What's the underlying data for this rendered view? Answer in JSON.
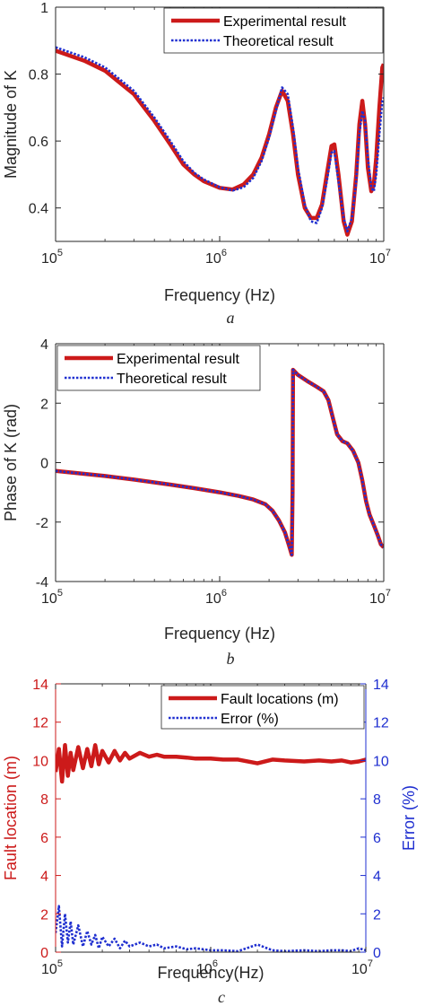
{
  "colors": {
    "experimental": "#cc1a1a",
    "theoretical": "#1f2fd0",
    "axis": "#262626"
  },
  "chart_data": [
    {
      "id": "a",
      "type": "line",
      "caption": "a",
      "xlabel": "Frequency (Hz)",
      "ylabel": "Magnitude of K",
      "xscale": "log",
      "xlim": [
        100000,
        10000000
      ],
      "ylim": [
        0.3,
        1.0
      ],
      "x_ticks": [
        {
          "base": "10",
          "exp": "5"
        },
        {
          "base": "10",
          "exp": "6"
        },
        {
          "base": "10",
          "exp": "7"
        }
      ],
      "y_ticks": [
        "0.4",
        "0.6",
        "0.8",
        "1"
      ],
      "y_tick_values": [
        0.4,
        0.6,
        0.8,
        1.0
      ],
      "legend": "top-right",
      "series": [
        {
          "name": "Experimental result",
          "style": "solid",
          "x": [
            100000,
            150000,
            200000,
            300000,
            400000,
            500000,
            600000,
            700000,
            800000,
            1000000,
            1200000,
            1400000,
            1600000,
            1800000,
            2000000,
            2200000,
            2400000,
            2600000,
            2800000,
            3000000,
            3300000,
            3600000,
            3900000,
            4200000,
            4500000,
            4800000,
            5000000,
            5300000,
            5700000,
            6000000,
            6400000,
            6800000,
            7100000,
            7400000,
            7700000,
            8000000,
            8400000,
            8700000,
            9000000,
            9400000,
            9800000,
            10000000
          ],
          "y": [
            0.87,
            0.84,
            0.81,
            0.74,
            0.66,
            0.59,
            0.53,
            0.5,
            0.48,
            0.46,
            0.455,
            0.47,
            0.5,
            0.55,
            0.62,
            0.7,
            0.75,
            0.72,
            0.62,
            0.5,
            0.4,
            0.37,
            0.37,
            0.41,
            0.5,
            0.585,
            0.59,
            0.5,
            0.36,
            0.32,
            0.36,
            0.5,
            0.65,
            0.72,
            0.65,
            0.52,
            0.45,
            0.47,
            0.55,
            0.7,
            0.82,
            0.83
          ]
        },
        {
          "name": "Theoretical result",
          "style": "dotted",
          "x": [
            100000,
            150000,
            200000,
            300000,
            400000,
            500000,
            600000,
            700000,
            800000,
            1000000,
            1200000,
            1400000,
            1600000,
            1800000,
            2000000,
            2200000,
            2400000,
            2600000,
            2800000,
            3000000,
            3300000,
            3600000,
            3900000,
            4200000,
            4500000,
            4800000,
            5000000,
            5300000,
            5700000,
            6000000,
            6400000,
            6800000,
            7100000,
            7400000,
            7700000,
            8000000,
            8400000,
            8700000,
            9000000,
            9400000,
            9800000,
            10000000
          ],
          "y": [
            0.88,
            0.85,
            0.82,
            0.75,
            0.67,
            0.6,
            0.54,
            0.505,
            0.485,
            0.462,
            0.452,
            0.462,
            0.49,
            0.54,
            0.61,
            0.69,
            0.76,
            0.74,
            0.64,
            0.52,
            0.41,
            0.36,
            0.355,
            0.4,
            0.48,
            0.565,
            0.57,
            0.48,
            0.37,
            0.33,
            0.37,
            0.48,
            0.62,
            0.69,
            0.66,
            0.55,
            0.46,
            0.45,
            0.5,
            0.62,
            0.72,
            0.73
          ]
        }
      ]
    },
    {
      "id": "b",
      "type": "line",
      "caption": "b",
      "xlabel": "Frequency (Hz)",
      "ylabel": "Phase of K (rad)",
      "xscale": "log",
      "xlim": [
        100000,
        10000000
      ],
      "ylim": [
        -4,
        4
      ],
      "x_ticks": [
        {
          "base": "10",
          "exp": "5"
        },
        {
          "base": "10",
          "exp": "6"
        },
        {
          "base": "10",
          "exp": "7"
        }
      ],
      "y_ticks": [
        "-4",
        "-2",
        "0",
        "2",
        "4"
      ],
      "y_tick_values": [
        -4,
        -2,
        0,
        2,
        4
      ],
      "legend": "top-left",
      "series": [
        {
          "name": "Experimental result",
          "style": "solid",
          "x": [
            100000,
            200000,
            300000,
            500000,
            700000,
            1000000,
            1300000,
            1600000,
            1900000,
            2100000,
            2300000,
            2500000,
            2650000,
            2750000,
            2780000,
            2800000,
            3000000,
            3400000,
            3900000,
            4300000,
            4600000,
            4900000,
            5200000,
            5600000,
            6000000,
            6500000,
            7000000,
            7400000,
            7800000,
            8200000,
            8700000,
            9200000,
            9600000,
            10000000
          ],
          "y": [
            -0.28,
            -0.45,
            -0.57,
            -0.74,
            -0.86,
            -1.0,
            -1.12,
            -1.24,
            -1.4,
            -1.62,
            -1.95,
            -2.35,
            -2.8,
            -3.1,
            -1.0,
            3.12,
            2.95,
            2.75,
            2.55,
            2.4,
            2.1,
            1.5,
            0.95,
            0.72,
            0.65,
            0.4,
            0.0,
            -0.6,
            -1.3,
            -1.75,
            -2.1,
            -2.45,
            -2.75,
            -2.85
          ]
        },
        {
          "name": "Theoretical result",
          "style": "dotted",
          "x": [
            100000,
            200000,
            300000,
            500000,
            700000,
            1000000,
            1300000,
            1600000,
            1900000,
            2100000,
            2300000,
            2500000,
            2650000,
            2750000,
            2780000,
            2800000,
            3000000,
            3400000,
            3900000,
            4300000,
            4600000,
            4900000,
            5200000,
            5600000,
            6000000,
            6500000,
            7000000,
            7400000,
            7800000,
            8200000,
            8700000,
            9200000,
            9600000,
            10000000
          ],
          "y": [
            -0.28,
            -0.45,
            -0.57,
            -0.74,
            -0.86,
            -1.0,
            -1.12,
            -1.24,
            -1.4,
            -1.62,
            -1.95,
            -2.35,
            -2.8,
            -3.1,
            -1.0,
            3.12,
            2.95,
            2.75,
            2.55,
            2.4,
            2.1,
            1.5,
            0.95,
            0.72,
            0.65,
            0.4,
            0.0,
            -0.6,
            -1.3,
            -1.75,
            -2.1,
            -2.45,
            -2.75,
            -2.85
          ]
        }
      ]
    },
    {
      "id": "c",
      "type": "line",
      "caption": "c",
      "xlabel": "Frequency(Hz)",
      "ylabel": "Fault location (m)",
      "y2label": "Error (%)",
      "xscale": "log",
      "xlim": [
        100000,
        10000000
      ],
      "ylim": [
        0,
        14
      ],
      "y2lim": [
        0,
        14
      ],
      "x_ticks": [
        {
          "base": "10",
          "exp": "5"
        },
        {
          "base": "10",
          "exp": "6"
        },
        {
          "base": "10",
          "exp": "7"
        }
      ],
      "y_ticks": [
        "0",
        "2",
        "4",
        "6",
        "8",
        "10",
        "12",
        "14"
      ],
      "y_tick_values": [
        0,
        2,
        4,
        6,
        8,
        10,
        12,
        14
      ],
      "y2_ticks": [
        "0",
        "2",
        "4",
        "6",
        "8",
        "10",
        "12",
        "14"
      ],
      "y2_tick_values": [
        0,
        2,
        4,
        6,
        8,
        10,
        12,
        14
      ],
      "legend": "top-right",
      "series": [
        {
          "name": "Fault locations (m)",
          "style": "solid",
          "axis": "left",
          "x": [
            100000,
            105000,
            110000,
            115000,
            120000,
            125000,
            130000,
            140000,
            150000,
            160000,
            170000,
            180000,
            190000,
            200000,
            220000,
            240000,
            260000,
            280000,
            300000,
            350000,
            400000,
            450000,
            500000,
            600000,
            700000,
            800000,
            1000000,
            1200000,
            1500000,
            2000000,
            2500000,
            3000000,
            4000000,
            5000000,
            6000000,
            7000000,
            8000000,
            9000000,
            10000000
          ],
          "y": [
            9.4,
            10.6,
            8.9,
            10.8,
            9.2,
            10.4,
            9.5,
            10.7,
            9.6,
            10.6,
            9.7,
            10.8,
            9.8,
            10.5,
            9.9,
            10.5,
            10.0,
            10.4,
            10.1,
            10.4,
            10.2,
            10.3,
            10.2,
            10.2,
            10.15,
            10.1,
            10.1,
            10.05,
            10.05,
            9.85,
            10.05,
            10.0,
            9.95,
            10.0,
            9.95,
            10.0,
            9.9,
            9.95,
            10.05
          ]
        },
        {
          "name": "Error (%)",
          "style": "dotted",
          "axis": "right",
          "x": [
            100000,
            105000,
            110000,
            115000,
            120000,
            125000,
            130000,
            140000,
            150000,
            160000,
            170000,
            180000,
            190000,
            200000,
            220000,
            240000,
            260000,
            280000,
            300000,
            350000,
            400000,
            450000,
            500000,
            600000,
            700000,
            800000,
            1000000,
            1200000,
            1500000,
            2000000,
            2500000,
            3000000,
            4000000,
            5000000,
            6000000,
            7000000,
            8000000,
            9000000,
            10000000
          ],
          "y": [
            1.0,
            2.4,
            0.3,
            2.0,
            0.5,
            1.6,
            0.4,
            1.4,
            0.3,
            1.1,
            0.4,
            0.9,
            0.2,
            0.8,
            0.3,
            0.7,
            0.2,
            0.6,
            0.3,
            0.5,
            0.3,
            0.4,
            0.2,
            0.3,
            0.15,
            0.2,
            0.1,
            0.1,
            0.05,
            0.4,
            0.1,
            0.05,
            0.1,
            0.05,
            0.1,
            0.1,
            0.05,
            0.2,
            0.1
          ]
        }
      ]
    }
  ]
}
